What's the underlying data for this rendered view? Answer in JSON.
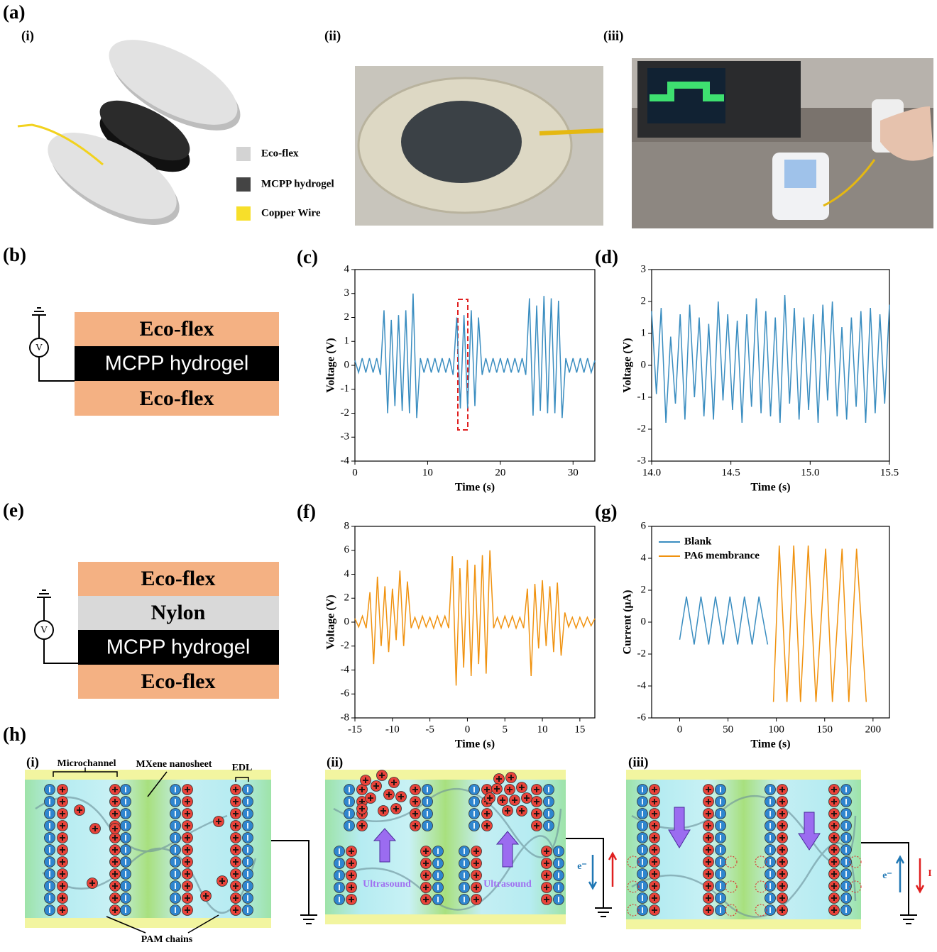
{
  "figure": {
    "panel_labels": [
      "(a)",
      "(b)",
      "(c)",
      "(d)",
      "(e)",
      "(f)",
      "(g)",
      "(h)"
    ],
    "a": {
      "sub": [
        "(i)",
        "(ii)",
        "(iii)"
      ],
      "legend": [
        "Eco-flex",
        "MCPP hydrogel",
        "Copper Wire"
      ]
    },
    "b": {
      "layers": [
        "Eco-flex",
        "MCPP hydrogel",
        "Eco-flex"
      ],
      "meter": "V"
    },
    "e": {
      "layers": [
        "Eco-flex",
        "Nylon",
        "MCPP hydrogel",
        "Eco-flex"
      ],
      "meter": "V"
    },
    "h": {
      "sub": [
        "(i)",
        "(ii)",
        "(iii)"
      ],
      "microchannel": "Microchannel",
      "mxene": "MXene nanosheet",
      "edl": "EDL",
      "pam": "PAM chains",
      "ultrasound": [
        "Ultrasound",
        "Ultrasound"
      ],
      "electron": [
        "e⁻",
        "e⁻"
      ],
      "current": "I"
    }
  },
  "chart_data": [
    {
      "type": "line",
      "xlabel": "Time (s)",
      "ylabel": "Voltage (V)",
      "xlim": [
        0,
        33
      ],
      "ylim": [
        -4,
        4
      ],
      "xticks": [
        0,
        10,
        20,
        30
      ],
      "yticks": [
        -4,
        -3,
        -2,
        -1,
        0,
        1,
        2,
        3,
        4
      ],
      "color": "#3a8dc0",
      "x": [
        0,
        0.5,
        1,
        1.5,
        2,
        2.5,
        3,
        3.5,
        4,
        4.5,
        5,
        5.5,
        6,
        6.5,
        7,
        7.5,
        8,
        8.5,
        9,
        9.5,
        10,
        10.5,
        11,
        11.5,
        12,
        12.5,
        13,
        13.5,
        14,
        14.5,
        15,
        15.5,
        16,
        16.5,
        17,
        17.5,
        18,
        18.5,
        19,
        19.5,
        20,
        20.5,
        21,
        21.5,
        22,
        22.5,
        23,
        23.5,
        24,
        24.5,
        25,
        25.5,
        26,
        26.5,
        27,
        27.5,
        28,
        28.5,
        29,
        29.5,
        30,
        30.5,
        31,
        31.5,
        32,
        32.5,
        33
      ],
      "values": [
        0.2,
        -0.3,
        0.3,
        -0.3,
        0.3,
        -0.3,
        0.3,
        -0.4,
        2.3,
        -2.0,
        1.9,
        -1.7,
        2.1,
        -1.9,
        2.3,
        -2.0,
        3.0,
        -2.2,
        0.3,
        -0.3,
        0.3,
        -0.3,
        0.3,
        -0.3,
        0.3,
        -0.3,
        0.3,
        -0.4,
        2.0,
        -1.8,
        2.1,
        -1.8,
        2.3,
        -1.7,
        2.0,
        -0.4,
        0.3,
        -0.3,
        0.3,
        -0.3,
        0.3,
        -0.3,
        0.3,
        -0.3,
        0.3,
        -0.3,
        0.3,
        -0.4,
        2.8,
        -2.1,
        2.5,
        -1.9,
        2.9,
        -2.0,
        2.8,
        -2.0,
        2.7,
        -2.2,
        0.3,
        -0.3,
        0.3,
        -0.3,
        0.3,
        -0.3,
        0.3,
        -0.3,
        0.2
      ]
    },
    {
      "type": "line",
      "xlabel": "Time (s)",
      "ylabel": "Voltage (V)",
      "xlim": [
        14,
        15.5
      ],
      "ylim": [
        -3,
        3
      ],
      "xticks": [
        {
          "value": 14,
          "label": "14.0"
        },
        14.5,
        {
          "value": 15,
          "label": "15.0"
        },
        15.5
      ],
      "yticks": [
        -3,
        -2,
        -1,
        0,
        1,
        2,
        3
      ],
      "color": "#3a8dc0",
      "x": [
        14,
        14.03,
        14.06,
        14.09,
        14.12,
        14.15,
        14.18,
        14.21,
        14.24,
        14.27,
        14.3,
        14.33,
        14.36,
        14.39,
        14.42,
        14.45,
        14.48,
        14.51,
        14.54,
        14.57,
        14.6,
        14.63,
        14.66,
        14.69,
        14.72,
        14.75,
        14.78,
        14.81,
        14.84,
        14.87,
        14.9,
        14.93,
        14.96,
        14.99,
        15.02,
        15.05,
        15.08,
        15.11,
        15.14,
        15.17,
        15.2,
        15.23,
        15.26,
        15.29,
        15.32,
        15.35,
        15.38,
        15.41,
        15.44,
        15.47,
        15.5
      ],
      "values": [
        1.7,
        -0.9,
        1.8,
        -1.8,
        0.9,
        -1.2,
        1.6,
        -1.7,
        1.9,
        -1.0,
        1.5,
        -1.6,
        1.3,
        -1.7,
        2.0,
        -1.1,
        1.6,
        -1.4,
        1.4,
        -1.8,
        1.6,
        -1.3,
        2.1,
        -1.5,
        1.7,
        -1.6,
        1.5,
        -1.8,
        2.2,
        -1.2,
        1.8,
        -1.7,
        1.5,
        -1.4,
        1.6,
        -1.8,
        1.9,
        -1.1,
        2.0,
        -1.6,
        1.2,
        -1.7,
        1.5,
        -1.3,
        1.7,
        -1.8,
        1.8,
        -1.5,
        1.6,
        -1.2,
        1.9
      ]
    },
    {
      "type": "line",
      "xlabel": "Time (s)",
      "ylabel": "Voltage (V)",
      "xlim": [
        -15,
        17
      ],
      "ylim": [
        -8,
        8
      ],
      "xticks": [
        -15,
        -10,
        -5,
        0,
        5,
        10,
        15
      ],
      "yticks": [
        -8,
        -6,
        -4,
        -2,
        0,
        2,
        4,
        6,
        8
      ],
      "color": "#f0920f",
      "x": [
        -15,
        -14.5,
        -14,
        -13.5,
        -13,
        -12.5,
        -12,
        -11.5,
        -11,
        -10.5,
        -10,
        -9.5,
        -9,
        -8.5,
        -8,
        -7.5,
        -7,
        -6.5,
        -6,
        -5.5,
        -5,
        -4.5,
        -4,
        -3.5,
        -3,
        -2.5,
        -2,
        -1.5,
        -1,
        -0.5,
        0,
        0.5,
        1,
        1.5,
        2,
        2.5,
        3,
        3.5,
        4,
        4.5,
        5,
        5.5,
        6,
        6.5,
        7,
        7.5,
        8,
        8.5,
        9,
        9.5,
        10,
        10.5,
        11,
        11.5,
        12,
        12.5,
        13,
        13.5,
        14,
        14.5,
        15,
        15.5,
        16,
        16.5,
        17
      ],
      "values": [
        0.3,
        -0.4,
        0.5,
        -0.5,
        2.5,
        -3.5,
        3.8,
        -2.0,
        3.0,
        -2.5,
        2.8,
        -1.5,
        4.3,
        -2.0,
        3.4,
        -0.5,
        0.4,
        -0.5,
        0.5,
        -0.4,
        0.4,
        -0.5,
        0.5,
        -0.4,
        0.5,
        -0.5,
        5.5,
        -5.3,
        4.5,
        -3.8,
        5.2,
        -4.5,
        4.8,
        -3.5,
        5.6,
        -4.3,
        6.0,
        -0.5,
        0.4,
        -0.5,
        0.5,
        -0.4,
        0.5,
        -0.5,
        0.4,
        -0.5,
        2.8,
        -4.5,
        3.2,
        -2.2,
        3.5,
        -2.0,
        3.0,
        -2.5,
        3.3,
        -2.8,
        0.8,
        -0.4,
        0.4,
        -0.5,
        0.4,
        -0.4,
        0.4,
        -0.3,
        0.3
      ]
    },
    {
      "type": "line",
      "xlabel": "Time (s)",
      "ylabel": "Current (μA)",
      "xlim": [
        -29,
        217
      ],
      "ylim": [
        -6,
        6
      ],
      "xticks": [
        0,
        50,
        100,
        150,
        200
      ],
      "yticks": [
        -6,
        -4,
        -2,
        0,
        2,
        4,
        6
      ],
      "legend": "top-left",
      "series": [
        {
          "name": "Blank",
          "color": "#3a8dc0",
          "x": [
            0,
            7,
            15,
            22,
            30,
            37,
            45,
            52,
            60,
            67,
            75,
            82,
            91
          ],
          "values": [
            -1.1,
            1.6,
            -1.4,
            1.6,
            -1.4,
            1.6,
            -1.4,
            1.6,
            -1.4,
            1.6,
            -1.4,
            1.6,
            -1.4
          ]
        },
        {
          "name": "PA6 membrance",
          "color": "#f0920f",
          "x": [
            97,
            103,
            111,
            118,
            125,
            133,
            141,
            151,
            158,
            168,
            175,
            183,
            193
          ],
          "values": [
            -5.0,
            4.8,
            -5.0,
            4.8,
            -5.0,
            4.8,
            -5.0,
            4.6,
            -5.0,
            4.6,
            -5.0,
            4.6,
            -5.0
          ]
        }
      ]
    }
  ]
}
